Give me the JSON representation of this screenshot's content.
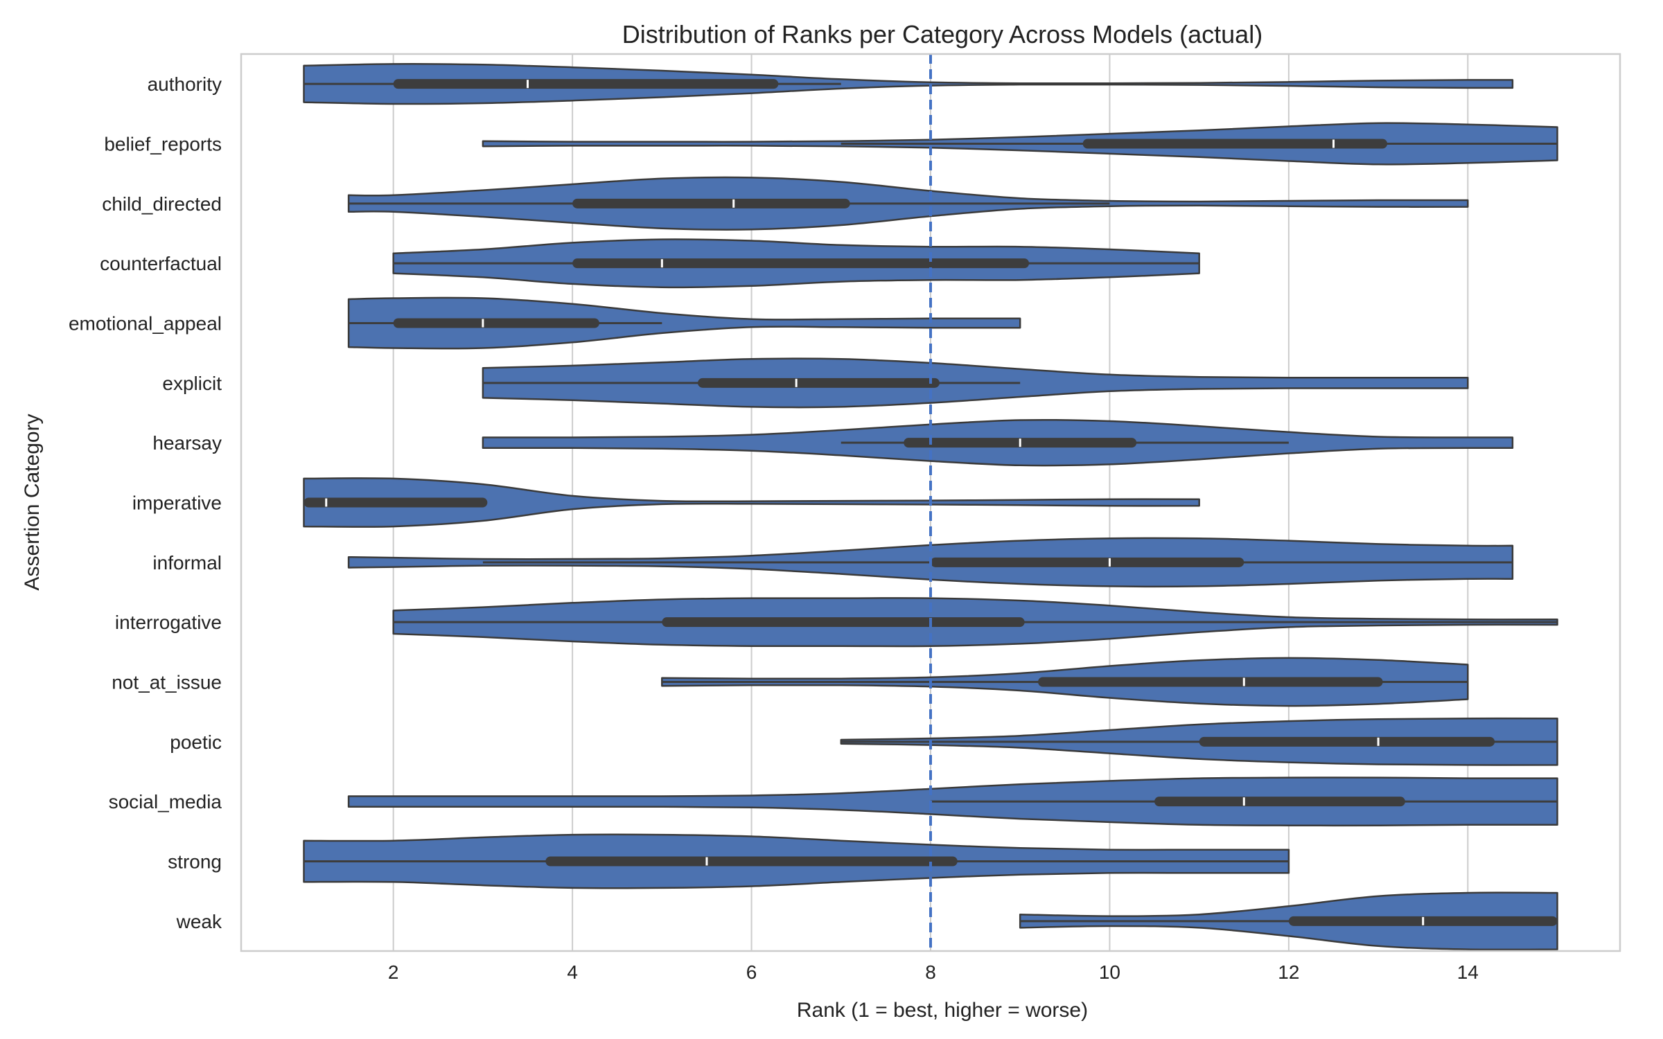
{
  "chart_data": {
    "type": "violin",
    "orientation": "horizontal",
    "title": "Distribution of Ranks per Category Across Models (actual)",
    "xlabel": "Rank (1 = best, higher = worse)",
    "ylabel": "Assertion Category",
    "xlim": [
      0.3,
      15.7
    ],
    "xticks": [
      2,
      4,
      6,
      8,
      10,
      12,
      14
    ],
    "grid": "vertical",
    "reference_line": {
      "x": 8,
      "style": "dashed",
      "color": "#4472c4"
    },
    "colors": {
      "violin_fill": "#4c72b0",
      "violin_edge": "#3a3a3a",
      "box": "#3d3d3d",
      "median": "#ffffff",
      "grid": "#cccccc",
      "frame": "#cccccc"
    },
    "categories": [
      {
        "name": "authority",
        "min": 1,
        "max": 14.5,
        "whisker": [
          1,
          7
        ],
        "q1": 2,
        "median": 3.5,
        "q3": 6.3,
        "density": [
          [
            1,
            0.55
          ],
          [
            2,
            0.6
          ],
          [
            3,
            0.58
          ],
          [
            4,
            0.5
          ],
          [
            5,
            0.4
          ],
          [
            6,
            0.28
          ],
          [
            7,
            0.14
          ],
          [
            8,
            0.05
          ],
          [
            9,
            0.02
          ],
          [
            10,
            0.02
          ],
          [
            11,
            0.03
          ],
          [
            12,
            0.06
          ],
          [
            13,
            0.1
          ],
          [
            14,
            0.12
          ],
          [
            14.5,
            0.12
          ]
        ]
      },
      {
        "name": "belief_reports",
        "min": 3,
        "max": 15,
        "whisker": [
          7,
          15
        ],
        "q1": 9.7,
        "median": 12.5,
        "q3": 13.1,
        "density": [
          [
            3,
            0.08
          ],
          [
            4,
            0.06
          ],
          [
            5,
            0.06
          ],
          [
            6,
            0.06
          ],
          [
            7,
            0.08
          ],
          [
            8,
            0.12
          ],
          [
            9,
            0.2
          ],
          [
            10,
            0.3
          ],
          [
            11,
            0.4
          ],
          [
            12,
            0.52
          ],
          [
            13,
            0.62
          ],
          [
            14,
            0.58
          ],
          [
            15,
            0.5
          ]
        ]
      },
      {
        "name": "child_directed",
        "min": 1.5,
        "max": 14,
        "whisker": [
          1.5,
          10
        ],
        "q1": 4,
        "median": 5.8,
        "q3": 7.1,
        "density": [
          [
            1.5,
            0.25
          ],
          [
            2,
            0.25
          ],
          [
            3,
            0.4
          ],
          [
            4,
            0.58
          ],
          [
            5,
            0.75
          ],
          [
            6,
            0.78
          ],
          [
            7,
            0.65
          ],
          [
            8,
            0.38
          ],
          [
            9,
            0.16
          ],
          [
            10,
            0.08
          ],
          [
            11,
            0.06
          ],
          [
            12,
            0.08
          ],
          [
            13,
            0.1
          ],
          [
            14,
            0.1
          ]
        ]
      },
      {
        "name": "counterfactual",
        "min": 2,
        "max": 11,
        "whisker": [
          2,
          11
        ],
        "q1": 4,
        "median": 5,
        "q3": 9.1,
        "density": [
          [
            2,
            0.3
          ],
          [
            3,
            0.42
          ],
          [
            4,
            0.62
          ],
          [
            5,
            0.72
          ],
          [
            6,
            0.68
          ],
          [
            7,
            0.55
          ],
          [
            8,
            0.5
          ],
          [
            9,
            0.5
          ],
          [
            10,
            0.42
          ],
          [
            11,
            0.3
          ]
        ]
      },
      {
        "name": "emotional_appeal",
        "min": 1.5,
        "max": 9,
        "whisker": [
          1.5,
          5
        ],
        "q1": 2,
        "median": 3,
        "q3": 4.3,
        "density": [
          [
            1.5,
            0.72
          ],
          [
            2,
            0.75
          ],
          [
            3,
            0.75
          ],
          [
            4,
            0.58
          ],
          [
            5,
            0.3
          ],
          [
            6,
            0.12
          ],
          [
            7,
            0.12
          ],
          [
            8,
            0.14
          ],
          [
            9,
            0.14
          ]
        ]
      },
      {
        "name": "explicit",
        "min": 3,
        "max": 14,
        "whisker": [
          3,
          9
        ],
        "q1": 5.4,
        "median": 6.5,
        "q3": 8.1,
        "density": [
          [
            3,
            0.45
          ],
          [
            4,
            0.52
          ],
          [
            5,
            0.62
          ],
          [
            6,
            0.72
          ],
          [
            7,
            0.72
          ],
          [
            8,
            0.6
          ],
          [
            9,
            0.42
          ],
          [
            10,
            0.25
          ],
          [
            11,
            0.18
          ],
          [
            12,
            0.16
          ],
          [
            13,
            0.16
          ],
          [
            14,
            0.16
          ]
        ]
      },
      {
        "name": "hearsay",
        "min": 3,
        "max": 14.5,
        "whisker": [
          7,
          12
        ],
        "q1": 7.7,
        "median": 9,
        "q3": 10.3,
        "density": [
          [
            3,
            0.16
          ],
          [
            4,
            0.16
          ],
          [
            5,
            0.18
          ],
          [
            6,
            0.24
          ],
          [
            7,
            0.38
          ],
          [
            8,
            0.55
          ],
          [
            9,
            0.68
          ],
          [
            10,
            0.65
          ],
          [
            11,
            0.5
          ],
          [
            12,
            0.32
          ],
          [
            13,
            0.18
          ],
          [
            14,
            0.16
          ],
          [
            14.5,
            0.16
          ]
        ]
      },
      {
        "name": "imperative",
        "min": 1,
        "max": 11,
        "whisker": [
          1,
          3
        ],
        "q1": 1,
        "median": 1.25,
        "q3": 3.05,
        "density": [
          [
            1,
            0.72
          ],
          [
            2,
            0.72
          ],
          [
            3,
            0.55
          ],
          [
            4,
            0.2
          ],
          [
            5,
            0.05
          ],
          [
            6,
            0.04
          ],
          [
            7,
            0.05
          ],
          [
            8,
            0.06
          ],
          [
            9,
            0.08
          ],
          [
            10,
            0.1
          ],
          [
            11,
            0.1
          ]
        ]
      },
      {
        "name": "informal",
        "min": 1.5,
        "max": 14.5,
        "whisker": [
          3,
          14.5
        ],
        "q1": 8,
        "median": 10,
        "q3": 11.5,
        "density": [
          [
            1.5,
            0.16
          ],
          [
            2,
            0.14
          ],
          [
            3,
            0.1
          ],
          [
            4,
            0.1
          ],
          [
            5,
            0.12
          ],
          [
            6,
            0.2
          ],
          [
            7,
            0.35
          ],
          [
            8,
            0.52
          ],
          [
            9,
            0.65
          ],
          [
            10,
            0.72
          ],
          [
            11,
            0.72
          ],
          [
            12,
            0.65
          ],
          [
            13,
            0.55
          ],
          [
            14,
            0.5
          ],
          [
            14.5,
            0.5
          ]
        ]
      },
      {
        "name": "interrogative",
        "min": 2,
        "max": 15,
        "whisker": [
          2,
          15
        ],
        "q1": 5,
        "median": 8,
        "q3": 9.05,
        "density": [
          [
            2,
            0.35
          ],
          [
            3,
            0.45
          ],
          [
            4,
            0.58
          ],
          [
            5,
            0.68
          ],
          [
            6,
            0.72
          ],
          [
            7,
            0.72
          ],
          [
            8,
            0.72
          ],
          [
            9,
            0.65
          ],
          [
            10,
            0.5
          ],
          [
            11,
            0.3
          ],
          [
            12,
            0.15
          ],
          [
            13,
            0.1
          ],
          [
            14,
            0.08
          ],
          [
            15,
            0.08
          ]
        ]
      },
      {
        "name": "not_at_issue",
        "min": 5,
        "max": 14,
        "whisker": [
          5,
          14
        ],
        "q1": 9.2,
        "median": 11.5,
        "q3": 13.05,
        "density": [
          [
            5,
            0.12
          ],
          [
            6,
            0.1
          ],
          [
            7,
            0.1
          ],
          [
            8,
            0.14
          ],
          [
            9,
            0.26
          ],
          [
            10,
            0.48
          ],
          [
            11,
            0.65
          ],
          [
            12,
            0.72
          ],
          [
            13,
            0.66
          ],
          [
            14,
            0.52
          ]
        ]
      },
      {
        "name": "poetic",
        "min": 7,
        "max": 15,
        "whisker": [
          7,
          15
        ],
        "q1": 11,
        "median": 13,
        "q3": 14.3,
        "density": [
          [
            7,
            0.06
          ],
          [
            8,
            0.1
          ],
          [
            9,
            0.18
          ],
          [
            10,
            0.35
          ],
          [
            11,
            0.52
          ],
          [
            12,
            0.62
          ],
          [
            13,
            0.68
          ],
          [
            14,
            0.7
          ],
          [
            15,
            0.7
          ]
        ]
      },
      {
        "name": "social_media",
        "min": 1.5,
        "max": 15,
        "whisker": [
          8,
          15
        ],
        "q1": 10.5,
        "median": 11.5,
        "q3": 13.3,
        "density": [
          [
            1.5,
            0.16
          ],
          [
            2,
            0.16
          ],
          [
            3,
            0.16
          ],
          [
            4,
            0.16
          ],
          [
            5,
            0.16
          ],
          [
            6,
            0.18
          ],
          [
            7,
            0.25
          ],
          [
            8,
            0.38
          ],
          [
            9,
            0.52
          ],
          [
            10,
            0.62
          ],
          [
            11,
            0.7
          ],
          [
            12,
            0.72
          ],
          [
            13,
            0.72
          ],
          [
            14,
            0.7
          ],
          [
            15,
            0.7
          ]
        ]
      },
      {
        "name": "strong",
        "min": 1,
        "max": 12,
        "whisker": [
          1,
          12
        ],
        "q1": 3.7,
        "median": 5.5,
        "q3": 8.3,
        "density": [
          [
            1,
            0.62
          ],
          [
            2,
            0.62
          ],
          [
            3,
            0.72
          ],
          [
            4,
            0.8
          ],
          [
            5,
            0.8
          ],
          [
            6,
            0.75
          ],
          [
            7,
            0.62
          ],
          [
            8,
            0.5
          ],
          [
            9,
            0.4
          ],
          [
            10,
            0.35
          ],
          [
            11,
            0.35
          ],
          [
            12,
            0.35
          ]
        ]
      },
      {
        "name": "weak",
        "min": 9,
        "max": 15,
        "whisker": [
          9,
          15
        ],
        "q1": 12,
        "median": 13.5,
        "q3": 15,
        "density": [
          [
            9,
            0.2
          ],
          [
            10,
            0.15
          ],
          [
            11,
            0.2
          ],
          [
            12,
            0.45
          ],
          [
            13,
            0.75
          ],
          [
            14,
            0.85
          ],
          [
            15,
            0.85
          ]
        ]
      }
    ]
  }
}
